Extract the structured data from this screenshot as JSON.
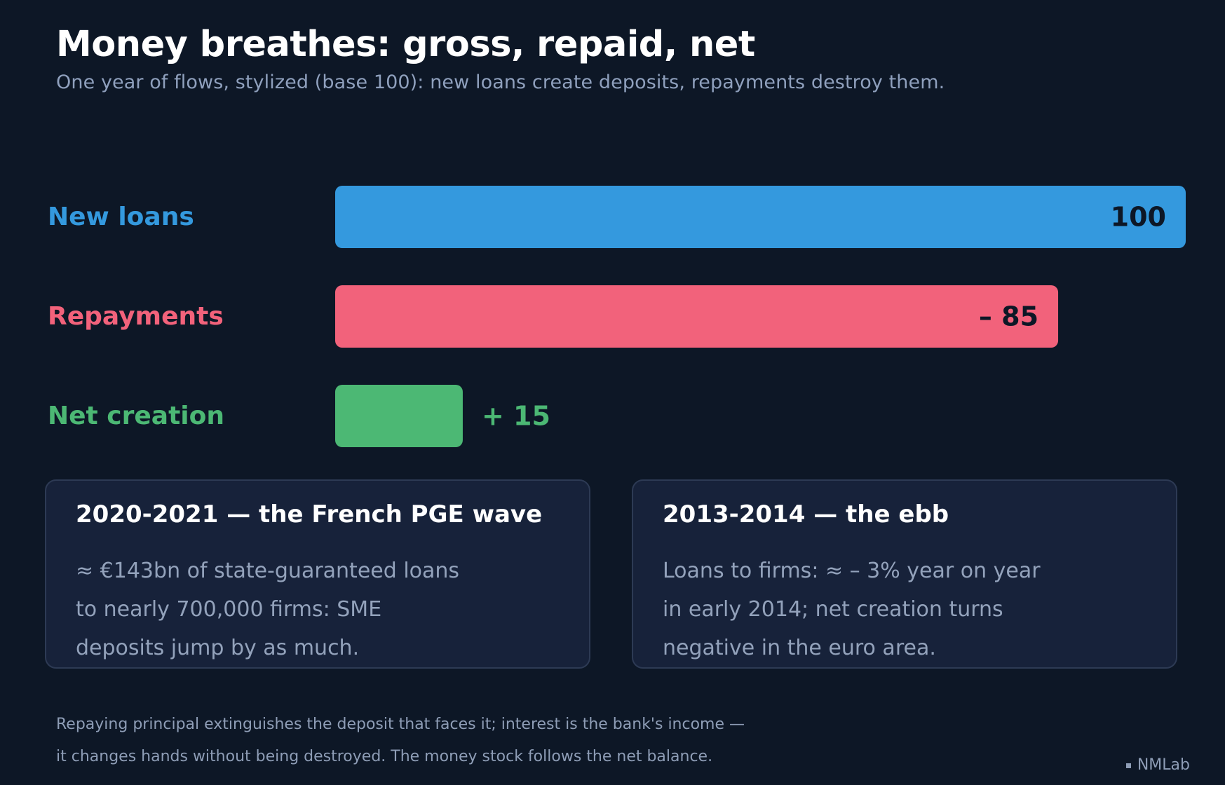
{
  "header": {
    "title": "Money breathes: gross, repaid, net",
    "subtitle": "One year of flows, stylized (base 100): new loans create deposits, repayments destroy them."
  },
  "chart_data": {
    "type": "bar",
    "orientation": "horizontal",
    "categories": [
      "New loans",
      "Repayments",
      "Net creation"
    ],
    "values": [
      100,
      -85,
      15
    ],
    "value_labels": [
      "100",
      "– 85",
      "+ 15"
    ],
    "colors": [
      "#3499de",
      "#f2627b",
      "#4cb874"
    ],
    "label_colors": [
      "#3499de",
      "#f2627b",
      "#4cb874"
    ],
    "xlim": [
      0,
      100
    ]
  },
  "cards": [
    {
      "title": "2020-2021 — the French PGE wave",
      "lines": [
        "≈ €143bn of state-guaranteed loans",
        "to nearly 700,000 firms: SME",
        "deposits jump by as much."
      ]
    },
    {
      "title": "2013-2014 — the ebb",
      "lines": [
        "Loans to firms: ≈ – 3% year on year",
        "in early 2014; net creation turns",
        "negative in the euro area."
      ]
    }
  ],
  "footer": {
    "lines": [
      "Repaying principal extinguishes the deposit that faces it; interest is the bank's income —",
      "it changes hands without being destroyed. The money stock follows the net balance."
    ],
    "brand": "NMLab"
  }
}
